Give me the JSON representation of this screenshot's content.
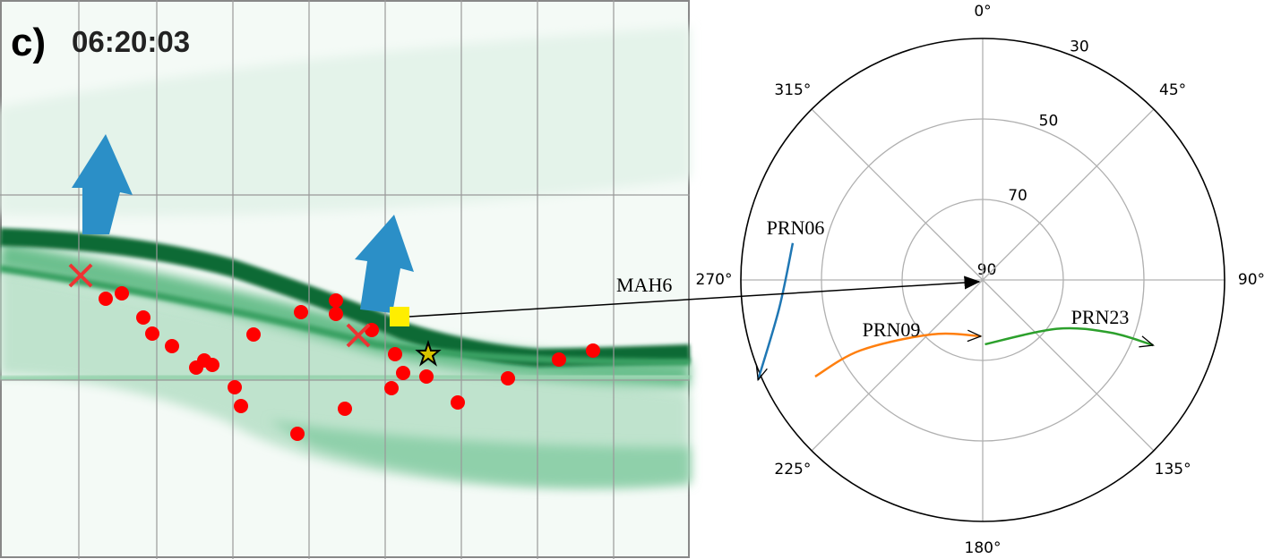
{
  "panel": {
    "label": "c)",
    "time": "06:20:03"
  },
  "chart_data": {
    "type": "polar",
    "theta_ticks": [
      {
        "value": 0,
        "label": "0°"
      },
      {
        "value": 45,
        "label": "45°"
      },
      {
        "value": 90,
        "label": "90°"
      },
      {
        "value": 135,
        "label": "135°"
      },
      {
        "value": 180,
        "label": "180°"
      },
      {
        "value": 225,
        "label": "225°"
      },
      {
        "value": 270,
        "label": "270°"
      },
      {
        "value": 315,
        "label": "315°"
      }
    ],
    "rlim": [
      90,
      30
    ],
    "rticks": [
      30,
      50,
      70,
      90
    ],
    "grid": true,
    "station": "MAH6",
    "series": [
      {
        "name": "PRN06",
        "color": "#1f77b4",
        "azimuth": [
          281,
          262,
          246
        ],
        "elevation": [
          42,
          39,
          29
        ]
      },
      {
        "name": "PRN09",
        "color": "#ff7f0e",
        "azimuth": [
          240,
          240,
          223,
          182
        ],
        "elevation": [
          42,
          55,
          71.5,
          76
        ]
      },
      {
        "name": "PRN23",
        "color": "#2ca02c",
        "azimuth": [
          178,
          123.5,
          112.4,
          111
        ],
        "elevation": [
          74,
          68,
          55.6,
          44.7
        ]
      }
    ]
  }
}
